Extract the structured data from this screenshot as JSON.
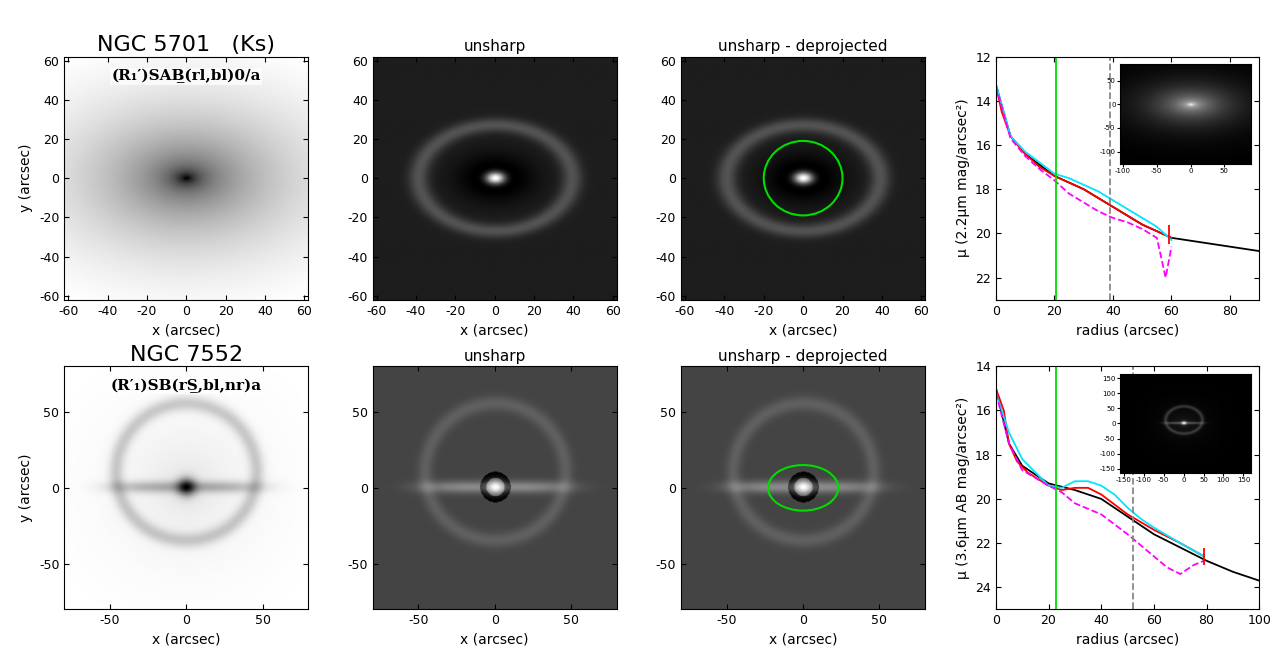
{
  "chart_data": [
    {
      "type": "image",
      "title": "NGC 5701   (Ks)",
      "annotation": "(R₁′)SAB̲(rl,bl)0/a",
      "xlabel": "x (arcsec)",
      "ylabel": "y (arcsec)",
      "xlim": [
        -62,
        62
      ],
      "ylim": [
        -62,
        62
      ],
      "xticks": [
        -60,
        -40,
        -20,
        0,
        20,
        40,
        60
      ],
      "yticks": [
        -60,
        -40,
        -20,
        0,
        20,
        40,
        60
      ]
    },
    {
      "type": "image",
      "title": "unsharp",
      "xlabel": "x (arcsec)",
      "xlim": [
        -62,
        62
      ],
      "ylim": [
        -62,
        62
      ],
      "xticks": [
        -60,
        -40,
        -20,
        0,
        20,
        40,
        60
      ],
      "yticks": [
        -60,
        -40,
        -20,
        0,
        20,
        40,
        60
      ]
    },
    {
      "type": "image",
      "title": "unsharp - deprojected",
      "xlabel": "x (arcsec)",
      "xlim": [
        -62,
        62
      ],
      "ylim": [
        -62,
        62
      ],
      "xticks": [
        -60,
        -40,
        -20,
        0,
        20,
        40,
        60
      ],
      "yticks": [
        -60,
        -40,
        -20,
        0,
        20,
        40,
        60
      ],
      "ellipse": {
        "a": 20,
        "b": 19,
        "color": "#00dd00"
      }
    },
    {
      "type": "line",
      "xlabel": "radius (arcsec)",
      "ylabel": "μ (2.2μm mag/arcsec²)",
      "xlim": [
        0,
        90
      ],
      "ylim": [
        23,
        12
      ],
      "xticks": [
        0,
        20,
        40,
        60,
        80
      ],
      "yticks": [
        12,
        14,
        16,
        18,
        20,
        22
      ],
      "series": [
        {
          "color": "#000000",
          "line_style": "solid",
          "x": [
            0,
            5,
            10,
            20,
            30,
            40,
            50,
            60,
            70,
            80,
            90
          ],
          "values": [
            13.3,
            15.6,
            16.4,
            17.4,
            18.0,
            18.8,
            19.6,
            20.2,
            20.4,
            20.6,
            20.8
          ]
        },
        {
          "color": "#ff0000",
          "line_style": "solid",
          "x": [
            0,
            2,
            5,
            10,
            15,
            20,
            25,
            30,
            35,
            40,
            45,
            50,
            55,
            60
          ],
          "values": [
            13.3,
            14.5,
            15.6,
            16.4,
            17.0,
            17.4,
            17.7,
            18.0,
            18.4,
            18.8,
            19.2,
            19.6,
            19.9,
            20.2
          ]
        },
        {
          "color": "#00e5ff",
          "line_style": "solid",
          "x": [
            0,
            5,
            10,
            20,
            25,
            30,
            35,
            40,
            45,
            50,
            55,
            60
          ],
          "values": [
            13.2,
            15.6,
            16.3,
            17.3,
            17.5,
            17.8,
            18.1,
            18.5,
            18.9,
            19.3,
            19.7,
            20.3
          ]
        },
        {
          "color": "#ff00ff",
          "line_style": "dashed",
          "x": [
            0,
            5,
            10,
            15,
            20,
            25,
            30,
            35,
            40,
            45,
            50,
            55,
            58,
            60
          ],
          "values": [
            13.3,
            15.7,
            16.5,
            17.1,
            17.6,
            18.2,
            18.6,
            19.0,
            19.3,
            19.5,
            19.8,
            20.2,
            22.0,
            20.6
          ]
        }
      ],
      "reference_lines": [
        {
          "x": 20.5,
          "color": "#00dd00",
          "line_style": "solid"
        },
        {
          "x": 39,
          "color": "#888888",
          "line_style": "dashed"
        }
      ],
      "limit_mark": {
        "x": 59,
        "y": [
          19.6,
          20.5
        ],
        "color": "#ff0000"
      },
      "inset": {
        "xlim": [
          -105,
          90
        ],
        "ylim": [
          -125,
          85
        ],
        "xticks": [
          -100,
          -50,
          0,
          50
        ],
        "yticks": [
          -100,
          -50,
          0,
          50
        ]
      }
    },
    {
      "type": "image",
      "title": "NGC 7552",
      "annotation": "(R′₁)SB(rS̲,bl,nr)a",
      "xlabel": "x (arcsec)",
      "ylabel": "y (arcsec)",
      "xlim": [
        -80,
        80
      ],
      "ylim": [
        -80,
        80
      ],
      "xticks": [
        -50,
        0,
        50
      ],
      "yticks": [
        -50,
        0,
        50
      ]
    },
    {
      "type": "image",
      "title": "unsharp",
      "xlabel": "x (arcsec)",
      "xlim": [
        -80,
        80
      ],
      "ylim": [
        -80,
        80
      ],
      "xticks": [
        -50,
        0,
        50
      ],
      "yticks": [
        -50,
        0,
        50
      ]
    },
    {
      "type": "image",
      "title": "unsharp - deprojected",
      "xlabel": "x (arcsec)",
      "xlim": [
        -80,
        80
      ],
      "ylim": [
        -80,
        80
      ],
      "xticks": [
        -50,
        0,
        50
      ],
      "yticks": [
        -50,
        0,
        50
      ],
      "ellipse": {
        "a": 23,
        "b": 15,
        "color": "#00dd00"
      }
    },
    {
      "type": "line",
      "xlabel": "radius (arcsec)",
      "ylabel": "μ (3.6μm AB mag/arcsec²)",
      "xlim": [
        0,
        100
      ],
      "ylim": [
        25,
        14
      ],
      "xticks": [
        0,
        20,
        40,
        60,
        80,
        100
      ],
      "yticks": [
        14,
        16,
        18,
        20,
        22,
        24
      ],
      "series": [
        {
          "color": "#000000",
          "line_style": "solid",
          "x": [
            0,
            5,
            10,
            20,
            30,
            40,
            50,
            60,
            70,
            80,
            90,
            100
          ],
          "values": [
            15.0,
            17.5,
            18.5,
            19.3,
            19.6,
            20.0,
            20.8,
            21.6,
            22.2,
            22.8,
            23.3,
            23.7
          ]
        },
        {
          "color": "#ff0000",
          "line_style": "solid",
          "x": [
            0,
            3,
            5,
            8,
            12,
            20,
            25,
            30,
            35,
            40,
            50,
            60,
            70,
            79
          ],
          "values": [
            15.0,
            16.0,
            17.5,
            18.3,
            18.8,
            19.4,
            19.6,
            19.5,
            19.5,
            19.8,
            20.7,
            21.4,
            22.0,
            22.6
          ]
        },
        {
          "color": "#00e5ff",
          "line_style": "solid",
          "x": [
            0,
            5,
            10,
            20,
            25,
            30,
            35,
            40,
            45,
            50,
            55,
            60,
            70,
            79
          ],
          "values": [
            15.2,
            17.0,
            18.2,
            19.4,
            19.5,
            19.2,
            19.2,
            19.4,
            19.8,
            20.4,
            20.9,
            21.3,
            22.0,
            22.6
          ]
        },
        {
          "color": "#ff00ff",
          "line_style": "dashed",
          "x": [
            0,
            5,
            10,
            20,
            25,
            30,
            40,
            50,
            55,
            60,
            65,
            70,
            75,
            79
          ],
          "values": [
            15.2,
            17.5,
            18.7,
            19.4,
            19.7,
            20.2,
            20.7,
            21.6,
            22.1,
            22.6,
            23.1,
            23.4,
            23.0,
            22.8
          ]
        }
      ],
      "reference_lines": [
        {
          "x": 23,
          "color": "#00dd00",
          "line_style": "solid"
        },
        {
          "x": 52,
          "color": "#888888",
          "line_style": "dashed"
        }
      ],
      "limit_mark": {
        "x": 79,
        "y": [
          22.2,
          23.0
        ],
        "color": "#ff0000"
      },
      "inset": {
        "xlim": [
          -160,
          170
        ],
        "ylim": [
          -165,
          165
        ],
        "xticks": [
          -150,
          -100,
          -50,
          0,
          50,
          100,
          150
        ],
        "yticks": [
          -150,
          -100,
          -50,
          0,
          50,
          100,
          150
        ]
      }
    }
  ]
}
